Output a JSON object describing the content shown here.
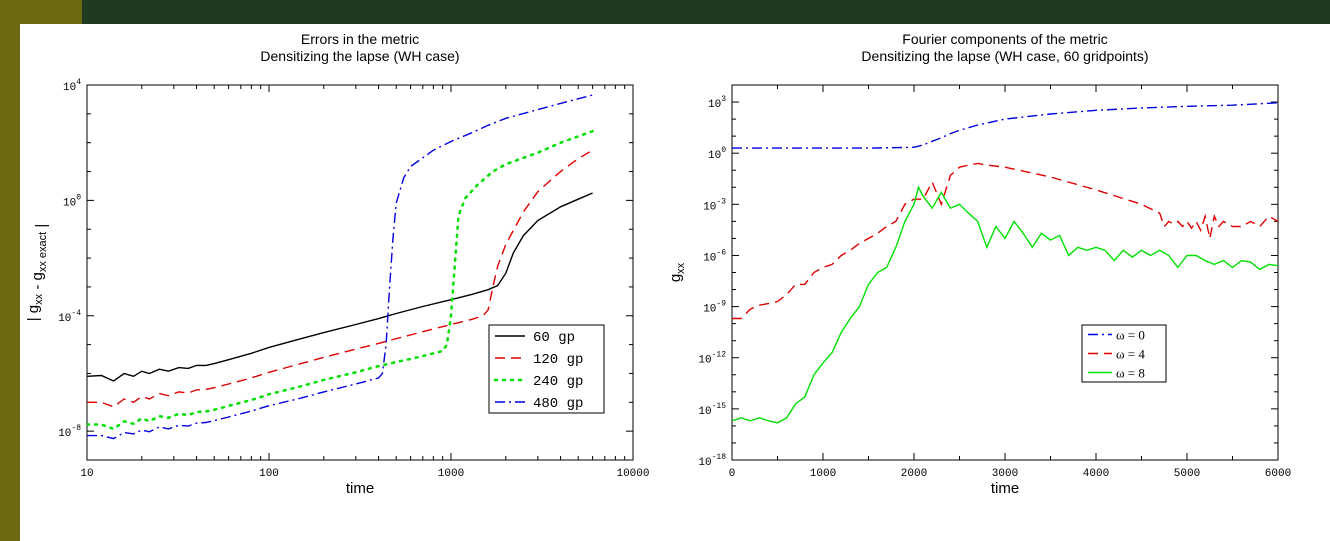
{
  "theme": {
    "sidebar_color": "#6b6a12",
    "topbar_color": "#1f3a1f",
    "topbar_accent": "#6b6a12"
  },
  "chart_data": [
    {
      "type": "line",
      "title": "Errors in the metric",
      "subtitle": "Densitizing the lapse (WH case)",
      "xlabel": "time",
      "ylabel": "| g_xx - g_xx exact |",
      "xscale": "log",
      "yscale": "log",
      "xlim": [
        10,
        10000
      ],
      "ylim": [
        1e-09,
        10000
      ],
      "xticks": [
        10,
        100,
        1000,
        10000
      ],
      "xtick_labels": [
        "10",
        "100",
        "1000",
        "10000"
      ],
      "yticks": [
        1e-08,
        0.0001,
        1,
        10000
      ],
      "ytick_labels": [
        {
          "base": "10",
          "exp": "-8"
        },
        {
          "base": "10",
          "exp": "-4"
        },
        {
          "base": "10",
          "exp": "0"
        },
        {
          "base": "10",
          "exp": "4"
        }
      ],
      "legend_position": "lower-right",
      "series": [
        {
          "name": "60 gp",
          "color": "#000000",
          "dash": "",
          "x": [
            10,
            12,
            14,
            16,
            18,
            20,
            22,
            25,
            28,
            32,
            36,
            40,
            45,
            50,
            60,
            80,
            100,
            150,
            200,
            300,
            400,
            500,
            700,
            1000,
            1300,
            1600,
            1800,
            2000,
            2200,
            2500,
            3000,
            4000,
            5000,
            6000
          ],
          "y": [
            8e-07,
            8.5e-07,
            5.5e-07,
            1e-06,
            8e-07,
            1.2e-06,
            1e-06,
            1.4e-06,
            1.2e-06,
            1.6e-06,
            1.5e-06,
            1.9e-06,
            1.9e-06,
            2.2e-06,
            3e-06,
            5e-06,
            8e-06,
            1.6e-05,
            2.6e-05,
            5e-05,
            8e-05,
            0.00012,
            0.00021,
            0.00036,
            0.00055,
            0.0008,
            0.0011,
            0.003,
            0.015,
            0.06,
            0.2,
            0.6,
            1.1,
            1.8
          ]
        },
        {
          "name": "120 gp",
          "color": "#e00000",
          "dash": "10,6",
          "x": [
            10,
            12,
            14,
            16,
            18,
            20,
            22,
            25,
            28,
            32,
            36,
            40,
            45,
            50,
            60,
            80,
            100,
            150,
            200,
            300,
            400,
            500,
            700,
            1000,
            1300,
            1500,
            1600,
            1700,
            1800,
            2000,
            2500,
            3000,
            4000,
            5000,
            6000
          ],
          "y": [
            1e-07,
            1e-07,
            7e-08,
            1.3e-07,
            1e-07,
            1.6e-07,
            1.3e-07,
            2e-07,
            1.7e-07,
            2.3e-07,
            2.1e-07,
            2.7e-07,
            2.8e-07,
            3.2e-07,
            4.3e-07,
            7e-07,
            1.1e-06,
            2.2e-06,
            3.6e-06,
            7e-06,
            1.1e-05,
            1.6e-05,
            2.8e-05,
            5e-05,
            7.5e-05,
            0.0001,
            0.00016,
            0.001,
            0.005,
            0.03,
            0.4,
            2,
            10,
            28,
            55
          ]
        },
        {
          "name": "240 gp",
          "color": "#00e000",
          "dash": "2,6",
          "x": [
            10,
            12,
            14,
            16,
            18,
            20,
            22,
            25,
            28,
            32,
            36,
            40,
            45,
            50,
            60,
            80,
            100,
            150,
            200,
            300,
            400,
            500,
            600,
            700,
            800,
            900,
            950,
            1000,
            1100,
            1200,
            1400,
            1700,
            2000,
            3000,
            4000,
            6000
          ],
          "y": [
            1.7e-08,
            1.7e-08,
            1.2e-08,
            2.2e-08,
            1.8e-08,
            2.8e-08,
            2.2e-08,
            3.3e-08,
            2.9e-08,
            4e-08,
            3.6e-08,
            4.6e-08,
            4.8e-08,
            5.5e-08,
            7.5e-08,
            1.2e-07,
            1.9e-07,
            3.6e-07,
            6e-07,
            1.1e-06,
            1.8e-06,
            2.5e-06,
            3.2e-06,
            4e-06,
            5e-06,
            6e-06,
            1e-05,
            0.0001,
            0.3,
            1.2,
            3.5,
            10,
            18,
            45,
            100,
            250
          ]
        },
        {
          "name": "480 gp",
          "color": "#0000e0",
          "dash": "10,4,2,4",
          "x": [
            10,
            12,
            14,
            16,
            18,
            20,
            22,
            25,
            28,
            32,
            36,
            40,
            45,
            50,
            60,
            80,
            100,
            150,
            200,
            300,
            400,
            420,
            440,
            460,
            480,
            500,
            550,
            600,
            700,
            800,
            1000,
            1300,
            1600,
            2000,
            3000,
            4000,
            6000
          ],
          "y": [
            7e-09,
            7e-09,
            5.5e-09,
            9e-09,
            8e-09,
            1.1e-08,
            9.5e-09,
            1.4e-08,
            1.2e-08,
            1.6e-08,
            1.5e-08,
            1.9e-08,
            2e-08,
            2.3e-08,
            3.1e-08,
            5e-08,
            7.6e-08,
            1.4e-07,
            2.3e-07,
            4.3e-07,
            7e-07,
            1e-06,
            1e-05,
            0.001,
            0.05,
            0.8,
            6,
            15,
            30,
            55,
            110,
            220,
            400,
            700,
            1400,
            2300,
            4500
          ]
        }
      ]
    },
    {
      "type": "line",
      "title": "Fourier components of the metric",
      "subtitle": "Densitizing the lapse (WH case, 60 gridpoints)",
      "xlabel": "time",
      "ylabel": "g_xx",
      "xscale": "linear",
      "yscale": "log",
      "xlim": [
        0,
        6000
      ],
      "ylim": [
        1e-18,
        10000
      ],
      "xticks": [
        0,
        1000,
        2000,
        3000,
        4000,
        5000,
        6000
      ],
      "xtick_labels": [
        "0",
        "1000",
        "2000",
        "3000",
        "4000",
        "5000",
        "6000"
      ],
      "yticks": [
        1e-18,
        1e-15,
        1e-12,
        1e-09,
        1e-06,
        0.001,
        1,
        1000
      ],
      "ytick_labels": [
        {
          "base": "10",
          "exp": "-18"
        },
        {
          "base": "10",
          "exp": "-15"
        },
        {
          "base": "10",
          "exp": "-12"
        },
        {
          "base": "10",
          "exp": "-9"
        },
        {
          "base": "10",
          "exp": "-6"
        },
        {
          "base": "10",
          "exp": "-3"
        },
        {
          "base": "10",
          "exp": "0"
        },
        {
          "base": "10",
          "exp": "3"
        }
      ],
      "legend_position": "center",
      "series": [
        {
          "name": "ω = 0",
          "color": "#0000e0",
          "dash": "10,4,2,4",
          "x": [
            0,
            500,
            1000,
            1500,
            2000,
            2100,
            2200,
            2300,
            2400,
            2500,
            2700,
            3000,
            3500,
            4000,
            4500,
            5000,
            5500,
            6000
          ],
          "y": [
            2,
            2,
            2,
            2,
            2.2,
            3,
            5,
            8,
            14,
            22,
            45,
            100,
            200,
            330,
            450,
            560,
            650,
            900
          ]
        },
        {
          "name": "ω = 4",
          "color": "#e00000",
          "dash": "10,6",
          "x": [
            0,
            100,
            200,
            300,
            400,
            500,
            600,
            700,
            800,
            900,
            1000,
            1100,
            1200,
            1300,
            1400,
            1500,
            1600,
            1700,
            1800,
            1900,
            2000,
            2100,
            2200,
            2300,
            2400,
            2500,
            2600,
            2700,
            2800,
            3000,
            3500,
            4000,
            4500,
            4700,
            4750,
            4800,
            4850,
            4900,
            4950,
            5000,
            5050,
            5100,
            5150,
            5200,
            5250,
            5300,
            5350,
            5400,
            5500,
            5600,
            5700,
            5800,
            5900,
            6000
          ],
          "y": [
            2e-10,
            2e-10,
            7e-10,
            1.2e-09,
            1.5e-09,
            2e-09,
            5e-09,
            2e-08,
            2e-08,
            1e-07,
            2e-07,
            3e-07,
            1e-06,
            2e-06,
            5e-06,
            1e-05,
            2e-05,
            5e-05,
            0.0001,
            0.001,
            0.002,
            0.002,
            0.02,
            0.001,
            0.05,
            0.15,
            0.2,
            0.25,
            0.2,
            0.15,
            0.04,
            0.007,
            0.001,
            0.0003,
            5e-05,
            0.0001,
            7e-05,
            0.0001,
            5e-05,
            0.0001,
            4e-05,
            0.0001,
            3e-05,
            0.0002,
            1e-05,
            0.0002,
            5e-05,
            0.0001,
            5e-05,
            5e-05,
            0.0001,
            5e-05,
            0.0002,
            0.0001
          ]
        },
        {
          "name": "ω = 8",
          "color": "#00e000",
          "dash": "",
          "x": [
            0,
            100,
            200,
            300,
            400,
            500,
            600,
            700,
            800,
            900,
            1000,
            1100,
            1200,
            1300,
            1400,
            1500,
            1600,
            1700,
            1800,
            1900,
            2000,
            2050,
            2100,
            2200,
            2300,
            2400,
            2500,
            2600,
            2700,
            2800,
            2900,
            3000,
            3100,
            3200,
            3300,
            3400,
            3500,
            3600,
            3700,
            3800,
            3900,
            4000,
            4100,
            4200,
            4300,
            4400,
            4500,
            4600,
            4700,
            4800,
            4900,
            5000,
            5100,
            5200,
            5300,
            5400,
            5500,
            5600,
            5700,
            5800,
            5900,
            6000
          ],
          "y": [
            2e-16,
            3e-16,
            2e-16,
            3e-16,
            2e-16,
            1.5e-16,
            3e-16,
            2e-15,
            5e-15,
            1e-13,
            5e-13,
            2e-12,
            3e-11,
            2e-10,
            1e-09,
            2e-08,
            1e-07,
            2e-07,
            3e-06,
            0.0001,
            0.001,
            0.01,
            0.003,
            0.0006,
            0.005,
            0.0006,
            0.001,
            0.0003,
            0.0001,
            3e-06,
            5e-05,
            1e-05,
            0.0001,
            2e-05,
            3e-06,
            2e-05,
            8e-06,
            1.5e-05,
            1e-06,
            3e-06,
            2e-06,
            3e-06,
            2e-06,
            5e-07,
            2e-06,
            8e-07,
            2e-06,
            1e-06,
            2e-06,
            1e-06,
            2e-07,
            1e-06,
            1e-06,
            5e-07,
            3e-07,
            5e-07,
            2e-07,
            5e-07,
            4e-07,
            1.5e-07,
            3e-07,
            2.5e-07
          ]
        }
      ]
    }
  ]
}
